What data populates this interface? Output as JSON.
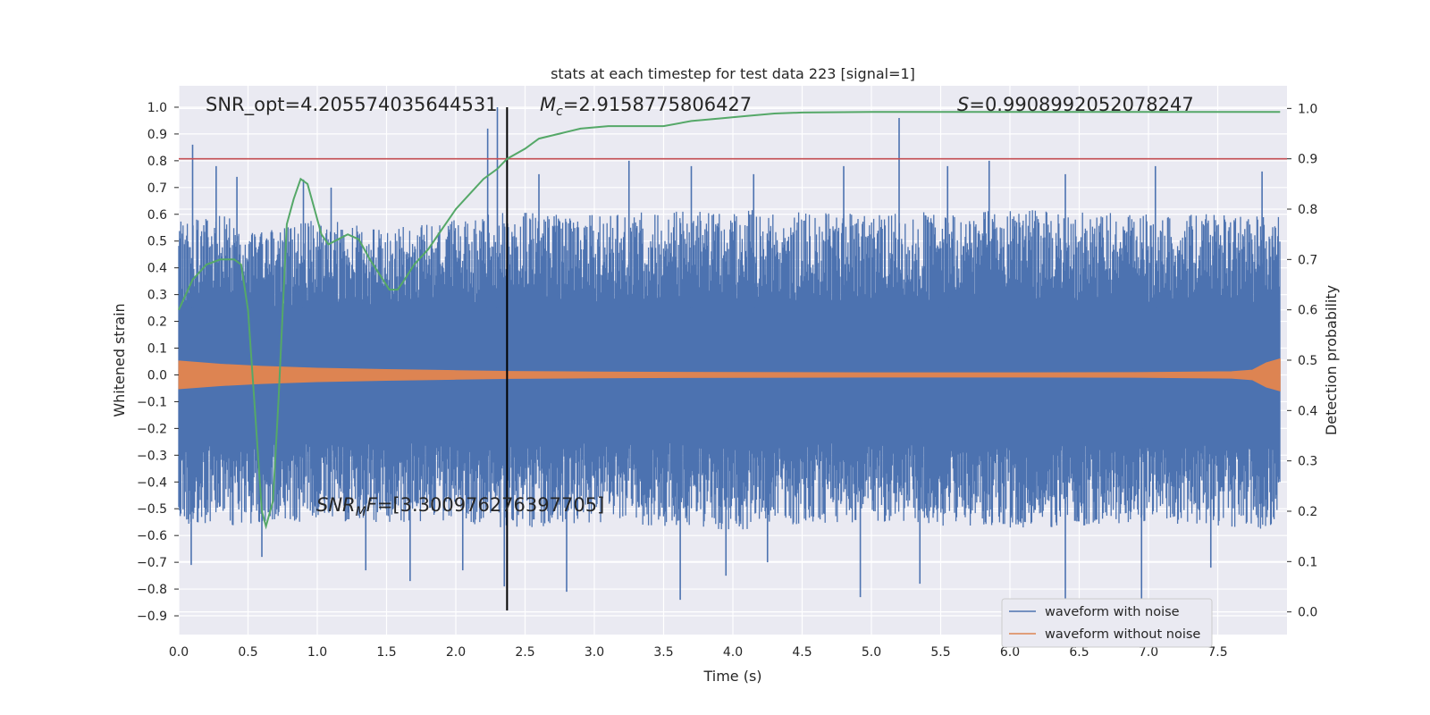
{
  "chart_data": {
    "type": "line",
    "title": "stats at each timestep for test data 223 [signal=1]",
    "xlabel": "Time (s)",
    "ylabel": "Whitened strain",
    "y2label": "Detection probability",
    "xlim": [
      0.0,
      8.0
    ],
    "ylim": [
      -0.97,
      1.08
    ],
    "y2lim": [
      -0.045,
      1.045
    ],
    "x_ticks": [
      "0.0",
      "0.5",
      "1.0",
      "1.5",
      "2.0",
      "2.5",
      "3.0",
      "3.5",
      "4.0",
      "4.5",
      "5.0",
      "5.5",
      "6.0",
      "6.5",
      "7.0",
      "7.5"
    ],
    "y_ticks": [
      "1.0",
      "0.9",
      "0.8",
      "0.7",
      "0.6",
      "0.5",
      "0.4",
      "0.3",
      "0.2",
      "0.1",
      "0.0",
      "−0.1",
      "−0.2",
      "−0.3",
      "−0.4",
      "−0.5",
      "−0.6",
      "−0.7",
      "−0.8",
      "−0.9"
    ],
    "y2_ticks": [
      "1.0",
      "0.9",
      "0.8",
      "0.7",
      "0.6",
      "0.5",
      "0.4",
      "0.3",
      "0.2",
      "0.1",
      "0.0"
    ],
    "grid": true,
    "legend_placement": "lower-right",
    "annotations": {
      "snr_opt": "SNR_opt=4.205574035644531",
      "mc_symbol": "M",
      "mc_sub": "c",
      "mc_value": "=2.9158775806427",
      "s_symbol": "S",
      "s_value": "=0.9908992052078247",
      "snr_mf_symbol": "SNR",
      "snr_mf_sub": "M",
      "snr_mf_f": "F",
      "snr_mf_value": "=[3.300976276397705]"
    },
    "threshold_y2": 0.9,
    "merger_time": 2.37,
    "series": [
      {
        "name": "waveform with noise",
        "color": "#4c72b0",
        "envelope_x": [
          0.0,
          0.3,
          0.6,
          1.0,
          1.5,
          2.0,
          2.4,
          3.0,
          4.0,
          5.0,
          6.0,
          7.0,
          7.95
        ],
        "envelope_pos": [
          0.58,
          0.6,
          0.55,
          0.58,
          0.55,
          0.58,
          0.62,
          0.6,
          0.62,
          0.6,
          0.62,
          0.6,
          0.6
        ],
        "envelope_neg": [
          -0.55,
          -0.58,
          -0.55,
          -0.55,
          -0.55,
          -0.55,
          -0.58,
          -0.55,
          -0.58,
          -0.55,
          -0.58,
          -0.55,
          -0.58
        ],
        "spikes": [
          [
            0.1,
            0.86
          ],
          [
            0.27,
            0.78
          ],
          [
            0.42,
            0.74
          ],
          [
            0.9,
            0.73
          ],
          [
            1.1,
            0.7
          ],
          [
            2.3,
            1.0
          ],
          [
            2.23,
            0.92
          ],
          [
            2.6,
            0.75
          ],
          [
            3.25,
            0.8
          ],
          [
            3.7,
            0.78
          ],
          [
            4.15,
            0.75
          ],
          [
            4.8,
            0.78
          ],
          [
            5.2,
            0.96
          ],
          [
            5.55,
            0.78
          ],
          [
            5.85,
            0.8
          ],
          [
            6.4,
            0.75
          ],
          [
            7.05,
            0.78
          ],
          [
            7.82,
            0.76
          ],
          [
            0.09,
            -0.71
          ],
          [
            0.6,
            -0.68
          ],
          [
            1.35,
            -0.73
          ],
          [
            1.67,
            -0.77
          ],
          [
            2.05,
            -0.73
          ],
          [
            2.35,
            -0.79
          ],
          [
            2.8,
            -0.81
          ],
          [
            3.62,
            -0.84
          ],
          [
            3.95,
            -0.75
          ],
          [
            4.25,
            -0.7
          ],
          [
            4.92,
            -0.83
          ],
          [
            5.35,
            -0.78
          ],
          [
            6.4,
            -0.96
          ],
          [
            6.95,
            -0.92
          ],
          [
            7.45,
            -0.72
          ]
        ]
      },
      {
        "name": "waveform without noise",
        "color": "#dd8452",
        "envelope_x": [
          0.0,
          0.3,
          0.6,
          1.0,
          1.5,
          2.0,
          2.4,
          3.0,
          4.0,
          5.0,
          6.0,
          7.0,
          7.6,
          7.75,
          7.85,
          7.95
        ],
        "amplitude": [
          0.052,
          0.04,
          0.032,
          0.025,
          0.02,
          0.016,
          0.013,
          0.011,
          0.009,
          0.008,
          0.008,
          0.009,
          0.012,
          0.018,
          0.045,
          0.06
        ]
      },
      {
        "name": "detection probability",
        "color": "#55a868",
        "axis": "right",
        "x": [
          0.0,
          0.1,
          0.2,
          0.3,
          0.35,
          0.4,
          0.45,
          0.5,
          0.55,
          0.6,
          0.63,
          0.68,
          0.72,
          0.78,
          0.83,
          0.88,
          0.93,
          0.98,
          1.03,
          1.08,
          1.15,
          1.22,
          1.3,
          1.38,
          1.45,
          1.52,
          1.58,
          1.63,
          1.7,
          1.8,
          1.9,
          2.0,
          2.1,
          2.2,
          2.3,
          2.37,
          2.5,
          2.6,
          2.75,
          2.9,
          3.1,
          3.3,
          3.5,
          3.7,
          3.9,
          4.1,
          4.3,
          4.5,
          5.0,
          6.0,
          7.0,
          7.95
        ],
        "y": [
          0.6,
          0.66,
          0.69,
          0.7,
          0.7,
          0.7,
          0.69,
          0.6,
          0.4,
          0.2,
          0.17,
          0.22,
          0.42,
          0.77,
          0.82,
          0.86,
          0.85,
          0.8,
          0.75,
          0.73,
          0.74,
          0.75,
          0.74,
          0.7,
          0.67,
          0.64,
          0.64,
          0.66,
          0.69,
          0.72,
          0.76,
          0.8,
          0.83,
          0.86,
          0.88,
          0.9,
          0.92,
          0.94,
          0.95,
          0.96,
          0.965,
          0.965,
          0.965,
          0.975,
          0.98,
          0.985,
          0.99,
          0.992,
          0.993,
          0.993,
          0.993,
          0.993
        ]
      }
    ]
  }
}
